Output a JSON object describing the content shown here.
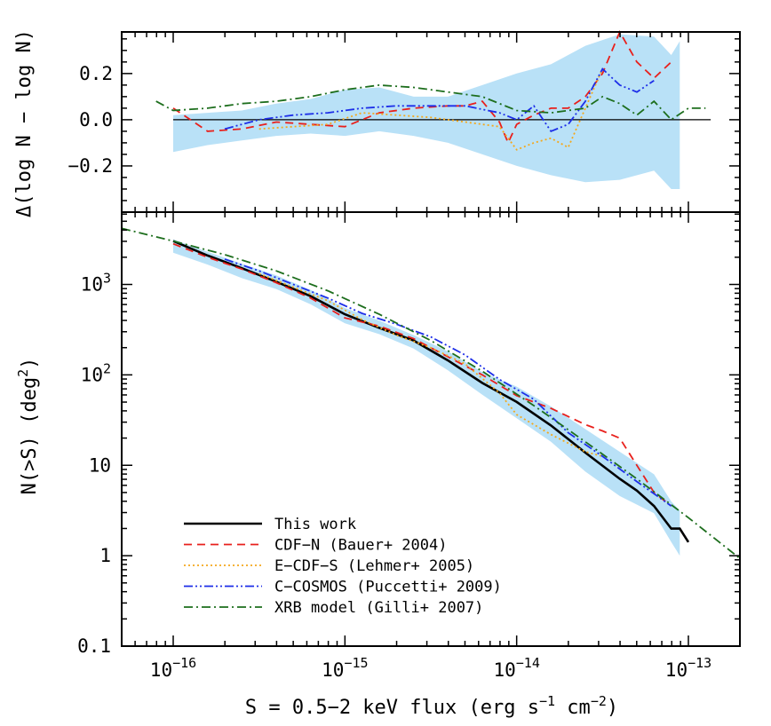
{
  "chart_data": [
    {
      "panel": "top",
      "type": "line",
      "ylabel_main": "Δ(log N − log N)",
      "ylim": [
        -0.4,
        0.38
      ],
      "xlim_log10": [
        -16.3,
        -12.7
      ],
      "yticks": [
        -0.2,
        0.0,
        0.2
      ],
      "ytick_labels": [
        "−0.2",
        "0.0",
        "0.2"
      ],
      "reference_line": 0.0,
      "band": {
        "name": "This work uncertainty",
        "color": "#b9e1f7",
        "x_log10": [
          -16.0,
          -15.8,
          -15.6,
          -15.4,
          -15.2,
          -15.0,
          -14.8,
          -14.6,
          -14.4,
          -14.2,
          -14.0,
          -13.8,
          -13.6,
          -13.4,
          -13.2,
          -13.1,
          -13.05
        ],
        "upper": [
          0.02,
          0.03,
          0.04,
          0.07,
          0.09,
          0.13,
          0.14,
          0.1,
          0.1,
          0.15,
          0.2,
          0.24,
          0.32,
          0.37,
          0.36,
          0.28,
          0.34
        ],
        "lower": [
          -0.14,
          -0.11,
          -0.09,
          -0.07,
          -0.06,
          -0.07,
          -0.05,
          -0.07,
          -0.1,
          -0.15,
          -0.2,
          -0.24,
          -0.27,
          -0.26,
          -0.22,
          -0.3,
          -0.3
        ]
      },
      "series": [
        {
          "name": "CDF-N (Bauer+ 2004)",
          "style": "dashed",
          "color": "#e8201c",
          "x_log10": [
            -16.0,
            -15.8,
            -15.6,
            -15.4,
            -15.2,
            -15.0,
            -14.8,
            -14.6,
            -14.4,
            -14.3,
            -14.2,
            -14.1,
            -14.05,
            -14.0,
            -13.9,
            -13.8,
            -13.7,
            -13.6,
            -13.5,
            -13.4,
            -13.3,
            -13.2,
            -13.1
          ],
          "y": [
            0.05,
            -0.05,
            -0.04,
            -0.01,
            -0.02,
            -0.03,
            0.03,
            0.05,
            0.06,
            0.06,
            0.08,
            -0.01,
            -0.1,
            -0.02,
            0.02,
            0.05,
            0.05,
            0.1,
            0.2,
            0.4,
            0.25,
            0.18,
            0.25
          ]
        },
        {
          "name": "E-CDF-S (Lehmer+ 2005)",
          "style": "dotted",
          "color": "#f4a81c",
          "x_log10": [
            -15.5,
            -15.3,
            -15.1,
            -14.9,
            -14.7,
            -14.5,
            -14.3,
            -14.1,
            -14.0,
            -13.9,
            -13.8,
            -13.7,
            -13.6,
            -13.5
          ],
          "y": [
            -0.04,
            -0.03,
            -0.02,
            0.03,
            0.02,
            0.01,
            -0.01,
            -0.03,
            -0.13,
            -0.1,
            -0.08,
            -0.12,
            0.05,
            0.22
          ]
        },
        {
          "name": "C-COSMOS (Puccetti+ 2009)",
          "style": "dash-dot-dot",
          "color": "#1d2ee8",
          "x_log10": [
            -15.7,
            -15.5,
            -15.3,
            -15.1,
            -14.9,
            -14.7,
            -14.5,
            -14.3,
            -14.1,
            -14.0,
            -13.9,
            -13.8,
            -13.7,
            -13.6,
            -13.5,
            -13.4,
            -13.3,
            -13.2
          ],
          "y": [
            -0.04,
            0.0,
            0.02,
            0.03,
            0.05,
            0.06,
            0.06,
            0.06,
            0.03,
            0.0,
            0.06,
            -0.05,
            -0.02,
            0.08,
            0.22,
            0.15,
            0.12,
            0.17
          ]
        },
        {
          "name": "XRB model (Gilli+ 2007)",
          "style": "dash-dot",
          "color": "#1d6e1d",
          "x_log10": [
            -16.1,
            -16.0,
            -15.8,
            -15.6,
            -15.4,
            -15.2,
            -15.0,
            -14.8,
            -14.6,
            -14.4,
            -14.2,
            -14.0,
            -13.8,
            -13.6,
            -13.5,
            -13.4,
            -13.3,
            -13.2,
            -13.1,
            -13.0,
            -12.9
          ],
          "y": [
            0.08,
            0.04,
            0.05,
            0.07,
            0.08,
            0.1,
            0.13,
            0.15,
            0.14,
            0.12,
            0.1,
            0.04,
            0.03,
            0.05,
            0.1,
            0.07,
            0.02,
            0.08,
            0.0,
            0.05,
            0.05
          ]
        }
      ]
    },
    {
      "panel": "bottom",
      "type": "line",
      "ylabel_main": "N(>S)  (deg",
      "ylabel_sup": "2",
      "ylabel_end": ")",
      "xlabel_main": "S = 0.5−2 keV flux (erg s",
      "xlabel_sup1": "−1",
      "xlabel_mid": " cm",
      "xlabel_sup2": "−2",
      "xlabel_end": ")",
      "xlim_log10": [
        -16.3,
        -12.7
      ],
      "ylim_log10": [
        -1,
        3.8
      ],
      "x_tick_bases": [
        "10",
        "10",
        "10",
        "10"
      ],
      "x_tick_exps": [
        "−16",
        "−15",
        "−14",
        "−13"
      ],
      "x_tick_log10": [
        -16,
        -15,
        -14,
        -13
      ],
      "y_tick_bases": [
        "0.1",
        "1",
        "10",
        "10",
        "10"
      ],
      "y_tick_exps": [
        "",
        "",
        "",
        "2",
        "3"
      ],
      "y_tick_log10": [
        -1,
        0,
        1,
        2,
        3
      ],
      "band": {
        "name": "This work uncertainty",
        "color": "#b9e1f7",
        "x_log10": [
          -16.0,
          -15.8,
          -15.6,
          -15.4,
          -15.2,
          -15.0,
          -14.8,
          -14.6,
          -14.4,
          -14.2,
          -14.0,
          -13.8,
          -13.6,
          -13.4,
          -13.2,
          -13.1,
          -13.05
        ],
        "upper_log10": [
          3.5,
          3.36,
          3.23,
          3.1,
          2.94,
          2.74,
          2.6,
          2.44,
          2.26,
          2.03,
          1.87,
          1.65,
          1.4,
          1.15,
          0.9,
          0.6,
          0.5
        ],
        "lower_log10": [
          3.35,
          3.22,
          3.07,
          2.95,
          2.78,
          2.57,
          2.45,
          2.29,
          2.05,
          1.78,
          1.52,
          1.26,
          0.93,
          0.66,
          0.47,
          0.15,
          0.0
        ]
      },
      "series": [
        {
          "name": "This work",
          "style": "solid",
          "color": "#000000",
          "x_log10": [
            -16.0,
            -15.8,
            -15.6,
            -15.4,
            -15.2,
            -15.0,
            -14.8,
            -14.6,
            -14.4,
            -14.2,
            -14.0,
            -13.8,
            -13.6,
            -13.4,
            -13.3,
            -13.2,
            -13.1,
            -13.05,
            -13.0
          ],
          "y_log10": [
            3.48,
            3.32,
            3.18,
            3.03,
            2.87,
            2.67,
            2.52,
            2.38,
            2.16,
            1.91,
            1.7,
            1.44,
            1.14,
            0.85,
            0.72,
            0.55,
            0.3,
            0.3,
            0.15
          ]
        },
        {
          "name": "CDF-N (Bauer+ 2004)",
          "style": "dashed",
          "color": "#e8201c",
          "x_log10": [
            -16.0,
            -15.8,
            -15.6,
            -15.4,
            -15.2,
            -15.0,
            -14.8,
            -14.6,
            -14.4,
            -14.2,
            -14.0,
            -13.8,
            -13.6,
            -13.5,
            -13.4,
            -13.3,
            -13.2,
            -13.1
          ],
          "y_log10": [
            3.45,
            3.3,
            3.17,
            3.02,
            2.85,
            2.63,
            2.54,
            2.4,
            2.2,
            2.0,
            1.77,
            1.63,
            1.45,
            1.38,
            1.3,
            1.0,
            0.7,
            0.55
          ]
        },
        {
          "name": "E-CDF-S (Lehmer+ 2005)",
          "style": "dotted",
          "color": "#f4a81c",
          "x_log10": [
            -15.5,
            -15.3,
            -15.1,
            -14.9,
            -14.7,
            -14.5,
            -14.3,
            -14.1,
            -14.0,
            -13.8,
            -13.6,
            -13.5
          ],
          "y_log10": [
            3.12,
            2.97,
            2.82,
            2.61,
            2.44,
            2.3,
            2.12,
            1.8,
            1.56,
            1.34,
            1.15,
            1.1
          ]
        },
        {
          "name": "C-COSMOS (Puccetti+ 2009)",
          "style": "dash-dot-dot",
          "color": "#1d2ee8",
          "x_log10": [
            -15.7,
            -15.5,
            -15.3,
            -15.1,
            -14.9,
            -14.7,
            -14.5,
            -14.3,
            -14.1,
            -13.9,
            -13.7,
            -13.5,
            -13.3,
            -13.1
          ],
          "y_log10": [
            3.28,
            3.15,
            3.0,
            2.85,
            2.68,
            2.56,
            2.42,
            2.22,
            1.95,
            1.73,
            1.36,
            1.1,
            0.82,
            0.55
          ]
        },
        {
          "name": "XRB model (Gilli+ 2007)",
          "style": "dash-dot",
          "color": "#1d6e1d",
          "x_log10": [
            -16.3,
            -16.0,
            -15.7,
            -15.4,
            -15.1,
            -14.8,
            -14.5,
            -14.2,
            -13.9,
            -13.6,
            -13.3,
            -13.0,
            -12.7
          ],
          "y_log10": [
            3.62,
            3.48,
            3.33,
            3.15,
            2.93,
            2.67,
            2.38,
            2.04,
            1.66,
            1.26,
            0.85,
            0.42,
            -0.03
          ]
        }
      ],
      "legend": {
        "placement": "bottom-left",
        "entries": [
          {
            "label": "This work",
            "style": "solid",
            "color": "#000000"
          },
          {
            "label": "CDF−N (Bauer+ 2004)",
            "style": "dashed",
            "color": "#e8201c"
          },
          {
            "label": "E−CDF−S (Lehmer+ 2005)",
            "style": "dotted",
            "color": "#f4a81c"
          },
          {
            "label": "C−COSMOS (Puccetti+ 2009)",
            "style": "dash-dot-dot",
            "color": "#1d2ee8"
          },
          {
            "label": "XRB model (Gilli+ 2007)",
            "style": "dash-dot",
            "color": "#1d6e1d"
          }
        ]
      }
    }
  ]
}
